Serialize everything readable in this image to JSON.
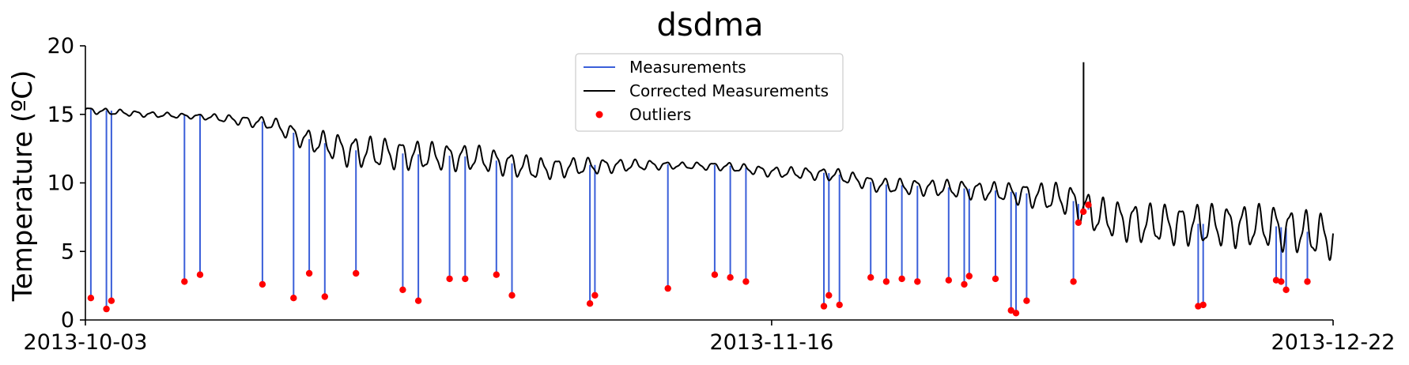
{
  "chart_data": {
    "type": "line",
    "title": "dsdma",
    "xlabel": "",
    "ylabel": "Temperature (ºC)",
    "x_range": [
      "2013-10-03",
      "2013-12-22"
    ],
    "x_ticks": [
      "2013-10-03",
      "2013-11-16",
      "2013-12-22"
    ],
    "ylim": [
      0,
      20
    ],
    "y_ticks": [
      0,
      5,
      10,
      15,
      20
    ],
    "grid": false,
    "legend_position": "top-center",
    "legend": [
      {
        "label": "Measurements",
        "kind": "line",
        "color": "#3a5fd9"
      },
      {
        "label": "Corrected Measurements",
        "kind": "line",
        "color": "#000000"
      },
      {
        "label": "Outliers",
        "kind": "marker",
        "color": "#ff0000"
      }
    ],
    "series": [
      {
        "name": "Corrected Measurements",
        "color": "#000000",
        "trend": [
          [
            "2013-10-03",
            15.3
          ],
          [
            "2013-10-07",
            15.0
          ],
          [
            "2013-10-11",
            14.8
          ],
          [
            "2013-10-15",
            14.3
          ],
          [
            "2013-10-17",
            13.2
          ],
          [
            "2013-10-20",
            12.3
          ],
          [
            "2013-10-24",
            12.0
          ],
          [
            "2013-10-28",
            11.8
          ],
          [
            "2013-11-01",
            11.0
          ],
          [
            "2013-11-04",
            11.2
          ],
          [
            "2013-11-08",
            11.3
          ],
          [
            "2013-11-13",
            11.2
          ],
          [
            "2013-11-16",
            10.8
          ],
          [
            "2013-11-20",
            10.6
          ],
          [
            "2013-11-23",
            9.8
          ],
          [
            "2013-11-27",
            9.6
          ],
          [
            "2013-12-01",
            9.3
          ],
          [
            "2013-12-05",
            8.8
          ],
          [
            "2013-12-07",
            7.5
          ],
          [
            "2013-12-10",
            7.0
          ],
          [
            "2013-12-14",
            6.9
          ],
          [
            "2013-12-18",
            6.8
          ],
          [
            "2013-12-22",
            6.0
          ]
        ],
        "spike": {
          "x": "2013-12-06",
          "y": 18.8
        },
        "diurnal_amplitude": [
          [
            "2013-10-03",
            0.2
          ],
          [
            "2013-10-10",
            0.15
          ],
          [
            "2013-10-15",
            0.4
          ],
          [
            "2013-10-20",
            1.0
          ],
          [
            "2013-11-01",
            0.7
          ],
          [
            "2013-11-10",
            0.2
          ],
          [
            "2013-11-20",
            0.4
          ],
          [
            "2013-12-01",
            0.6
          ],
          [
            "2013-12-07",
            1.2
          ],
          [
            "2013-12-22",
            1.4
          ]
        ]
      },
      {
        "name": "Measurements",
        "color": "#3a5fd9",
        "drops": [
          [
            "2013-10-03",
            1.6
          ],
          [
            "2013-10-04",
            0.8
          ],
          [
            "2013-10-04",
            1.4
          ],
          [
            "2013-10-09",
            2.8
          ],
          [
            "2013-10-10",
            3.3
          ],
          [
            "2013-10-14",
            2.6
          ],
          [
            "2013-10-16",
            1.6
          ],
          [
            "2013-10-17",
            3.4
          ],
          [
            "2013-10-18",
            1.7
          ],
          [
            "2013-10-20",
            3.4
          ],
          [
            "2013-10-23",
            2.2
          ],
          [
            "2013-10-24",
            1.4
          ],
          [
            "2013-10-26",
            3.0
          ],
          [
            "2013-10-27",
            3.0
          ],
          [
            "2013-10-29",
            3.3
          ],
          [
            "2013-10-30",
            1.8
          ],
          [
            "2013-11-04",
            1.2
          ],
          [
            "2013-11-04",
            1.8
          ],
          [
            "2013-11-09",
            2.3
          ],
          [
            "2013-11-12",
            3.3
          ],
          [
            "2013-11-13",
            3.1
          ],
          [
            "2013-11-14",
            2.8
          ],
          [
            "2013-11-19",
            1.0
          ],
          [
            "2013-11-19",
            1.8
          ],
          [
            "2013-11-20",
            1.1
          ],
          [
            "2013-11-22",
            3.1
          ],
          [
            "2013-11-23",
            2.8
          ],
          [
            "2013-11-24",
            3.0
          ],
          [
            "2013-11-25",
            2.8
          ],
          [
            "2013-11-27",
            2.9
          ],
          [
            "2013-11-28",
            2.6
          ],
          [
            "2013-11-28",
            3.2
          ],
          [
            "2013-11-30",
            3.0
          ],
          [
            "2013-12-01",
            0.7
          ],
          [
            "2013-12-01",
            0.5
          ],
          [
            "2013-12-02",
            1.4
          ],
          [
            "2013-12-05",
            2.8
          ],
          [
            "2013-12-05",
            7.1
          ],
          [
            "2013-12-05",
            7.9
          ],
          [
            "2013-12-05",
            8.4
          ],
          [
            "2013-12-13",
            1.0
          ],
          [
            "2013-12-13",
            1.1
          ],
          [
            "2013-12-18",
            2.9
          ],
          [
            "2013-12-18",
            2.8
          ],
          [
            "2013-12-18",
            2.2
          ],
          [
            "2013-12-20",
            2.8
          ]
        ]
      },
      {
        "name": "Outliers",
        "color": "#ff0000",
        "points": "same as Measurements drops"
      }
    ]
  }
}
